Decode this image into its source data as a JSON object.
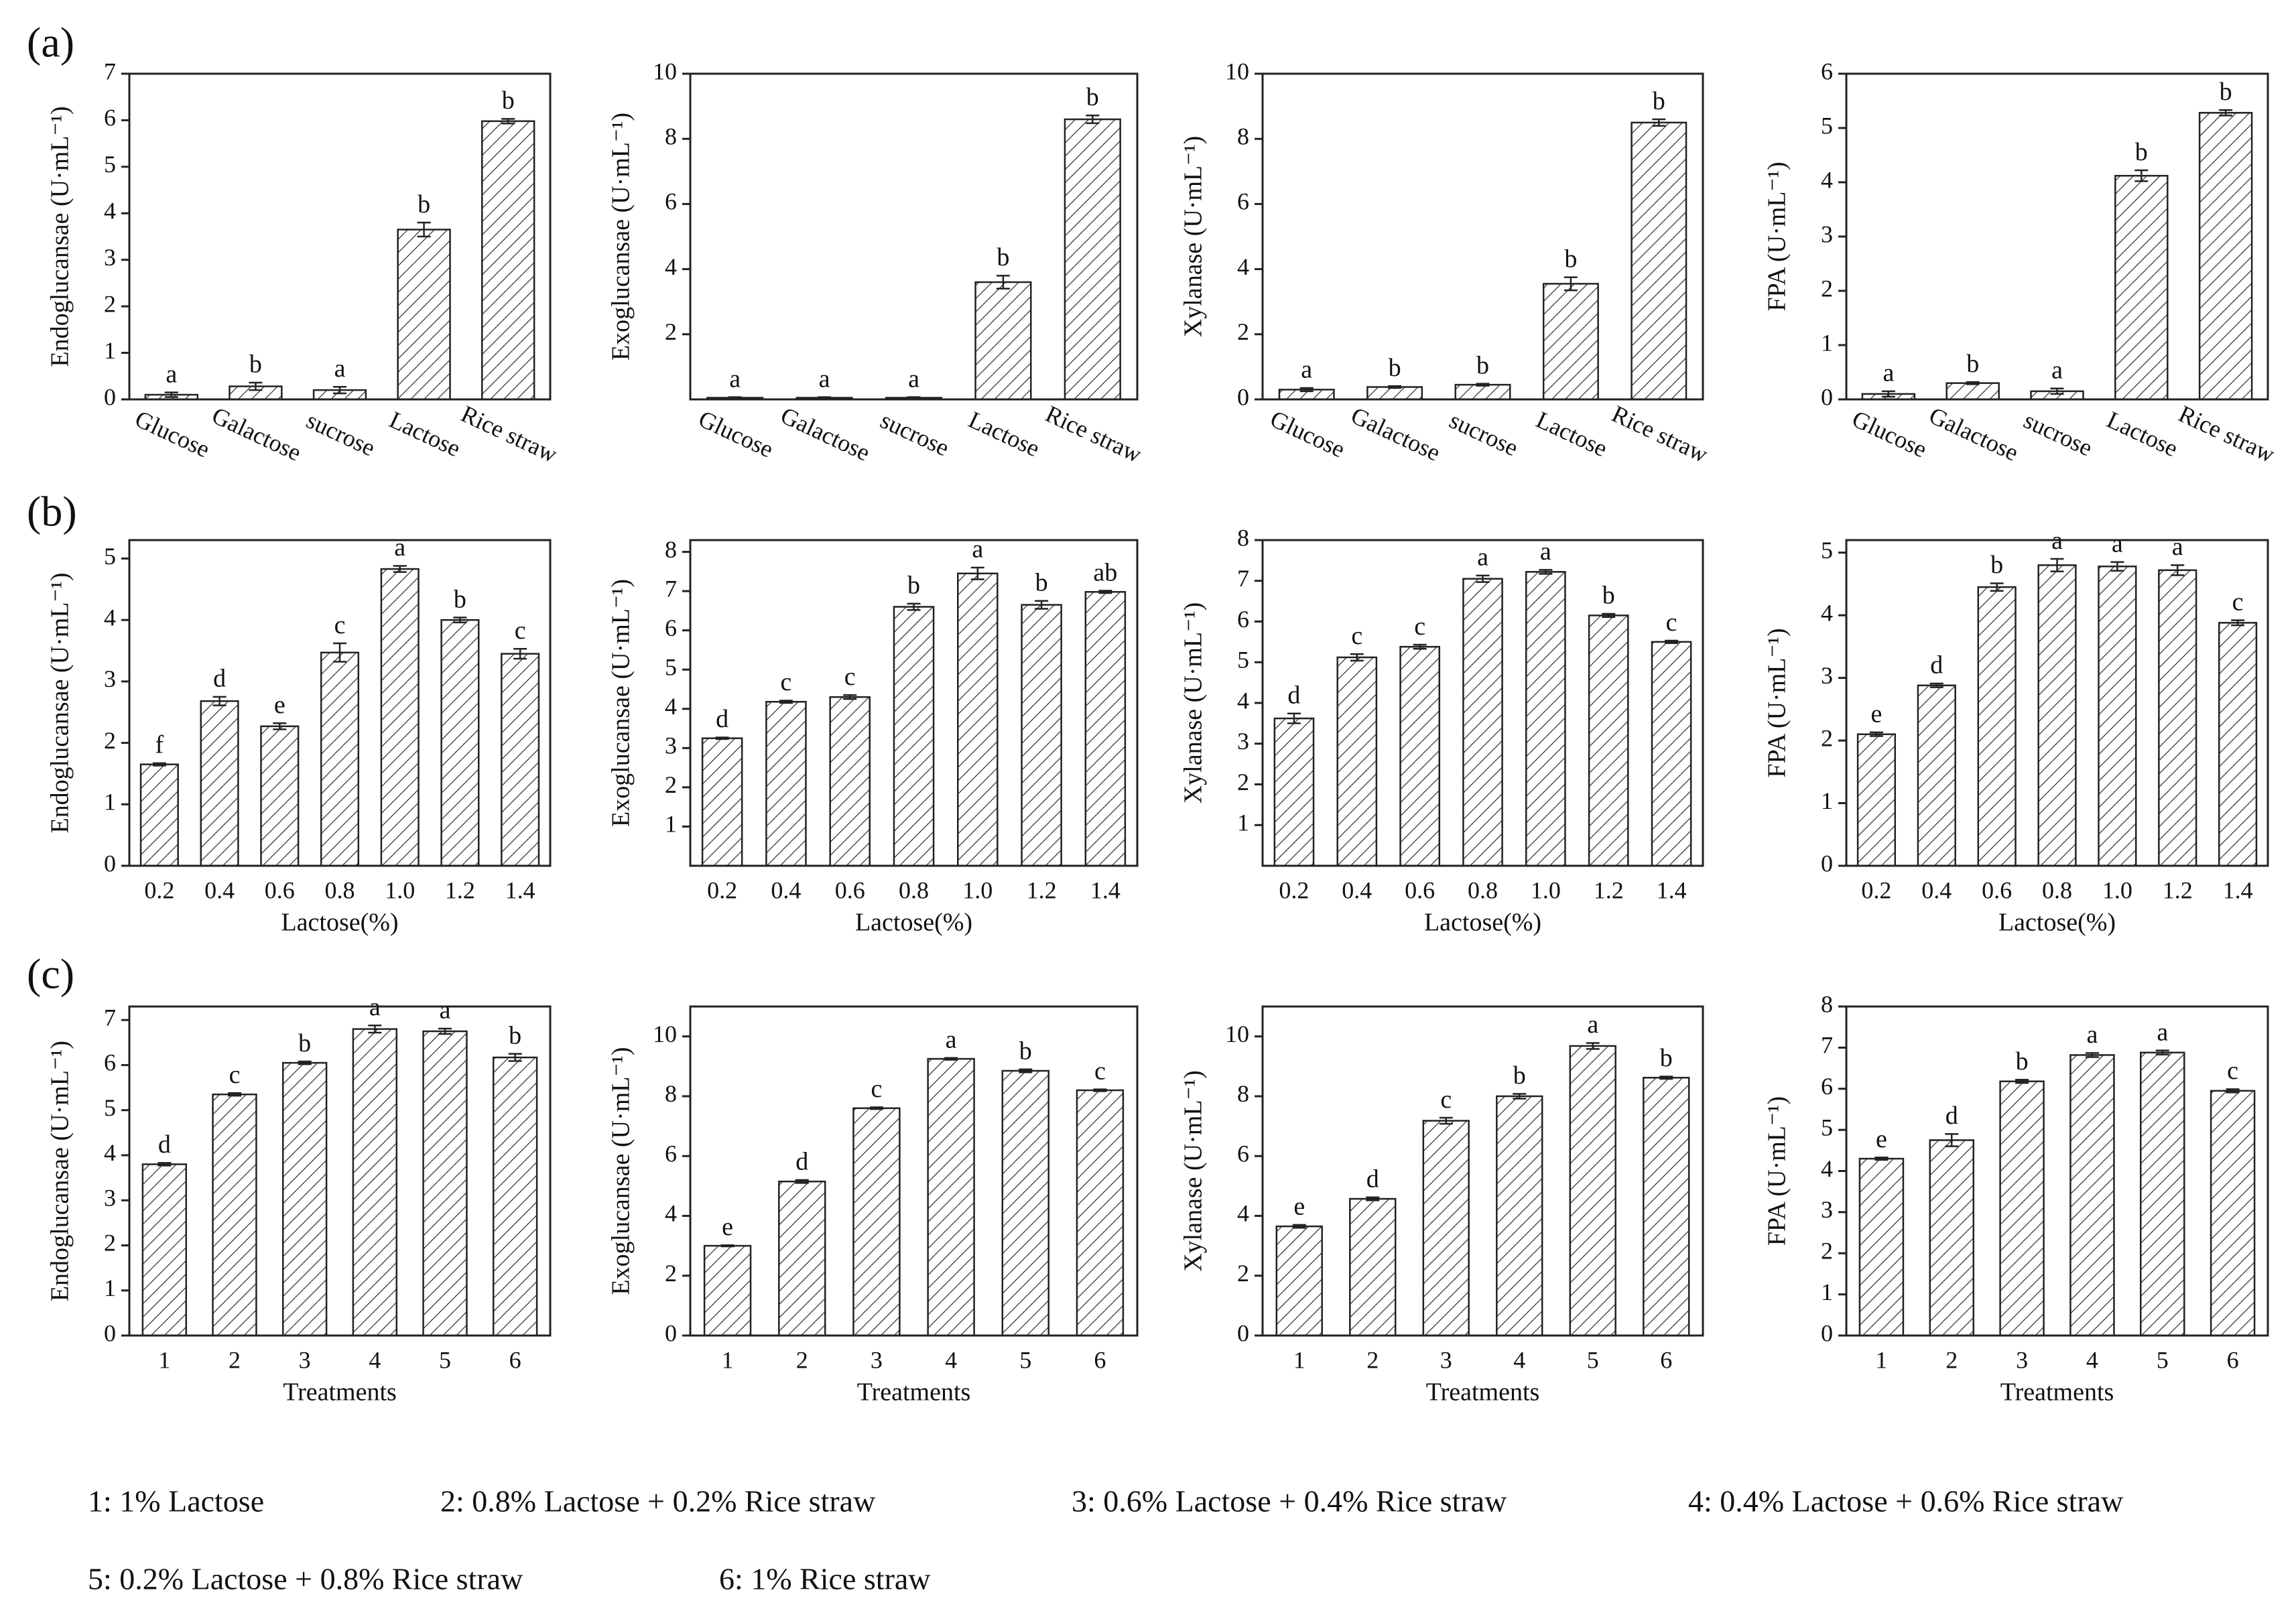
{
  "panels": [
    "(a)",
    "(b)",
    "(c)"
  ],
  "notes": [
    "1: 1% Lactose",
    "2: 0.8% Lactose + 0.2% Rice straw",
    "3: 0.6% Lactose + 0.4% Rice straw",
    "4: 0.4% Lactose + 0.6% Rice straw",
    "5: 0.2% Lactose + 0.8% Rice straw",
    "6: 1% Rice straw"
  ],
  "chart_data": [
    {
      "type": "bar",
      "ylabel": "Endoglucansae (U·mL⁻¹)",
      "categories": [
        "Glucose",
        "Galactose",
        "sucrose",
        "Lactose",
        "Rice straw"
      ],
      "values": [
        0.1,
        0.28,
        0.2,
        3.65,
        5.98
      ],
      "errors": [
        0.05,
        0.08,
        0.07,
        0.15,
        0.05
      ],
      "letters": [
        "a",
        "b",
        "a",
        "b",
        "b"
      ],
      "ylim": [
        0,
        7
      ],
      "yticks": [
        0,
        1,
        2,
        3,
        4,
        5,
        6,
        7
      ]
    },
    {
      "type": "bar",
      "ylabel": "Exoglucansae (U·mL⁻¹)",
      "categories": [
        "Glucose",
        "Galactose",
        "sucrose",
        "Lactose",
        "Rice straw"
      ],
      "values": [
        0.05,
        0.05,
        0.05,
        3.6,
        8.6
      ],
      "errors": [
        0.02,
        0.02,
        0.02,
        0.2,
        0.12
      ],
      "letters": [
        "a",
        "a",
        "a",
        "b",
        "b"
      ],
      "ylim": [
        0,
        10
      ],
      "yticks": [
        2,
        4,
        6,
        8,
        10
      ]
    },
    {
      "type": "bar",
      "ylabel": "Xylanase (U·mL⁻¹)",
      "categories": [
        "Glucose",
        "Galactose",
        "sucrose",
        "Lactose",
        "Rice straw"
      ],
      "values": [
        0.3,
        0.38,
        0.45,
        3.55,
        8.5
      ],
      "errors": [
        0.05,
        0.03,
        0.03,
        0.2,
        0.1
      ],
      "letters": [
        "a",
        "b",
        "b",
        "b",
        "b"
      ],
      "ylim": [
        0,
        10
      ],
      "yticks": [
        0,
        2,
        4,
        6,
        8,
        10
      ]
    },
    {
      "type": "bar",
      "ylabel": "FPA (U·mL⁻¹)",
      "categories": [
        "Glucose",
        "Galactose",
        "sucrose",
        "Lactose",
        "Rice straw"
      ],
      "values": [
        0.1,
        0.3,
        0.15,
        4.12,
        5.28
      ],
      "errors": [
        0.05,
        0.02,
        0.05,
        0.1,
        0.05
      ],
      "letters": [
        "a",
        "b",
        "a",
        "b",
        "b"
      ],
      "ylim": [
        0,
        6
      ],
      "yticks": [
        0,
        1,
        2,
        3,
        4,
        5,
        6
      ]
    },
    {
      "type": "bar",
      "ylabel": "Endoglucansae (U·mL⁻¹)",
      "xlabel": "Lactose(%)",
      "categories": [
        "0.2",
        "0.4",
        "0.6",
        "0.8",
        "1.0",
        "1.2",
        "1.4"
      ],
      "values": [
        1.65,
        2.68,
        2.27,
        3.47,
        4.83,
        4.0,
        3.45
      ],
      "errors": [
        0.02,
        0.07,
        0.05,
        0.15,
        0.05,
        0.04,
        0.08
      ],
      "letters": [
        "f",
        "d",
        "e",
        "c",
        "a",
        "b",
        "c"
      ],
      "ylim": [
        0,
        5.3
      ],
      "yticks": [
        0,
        1,
        2,
        3,
        4,
        5
      ]
    },
    {
      "type": "bar",
      "ylabel": "Exoglucansae (U·mL⁻¹)",
      "xlabel": "Lactose(%)",
      "categories": [
        "0.2",
        "0.4",
        "0.6",
        "0.8",
        "1.0",
        "1.2",
        "1.4"
      ],
      "values": [
        3.25,
        4.18,
        4.3,
        6.6,
        7.45,
        6.65,
        6.98
      ],
      "errors": [
        0.02,
        0.03,
        0.05,
        0.08,
        0.15,
        0.1,
        0.03
      ],
      "letters": [
        "d",
        "c",
        "c",
        "b",
        "a",
        "b",
        "ab"
      ],
      "ylim": [
        0,
        8.3
      ],
      "yticks": [
        1,
        2,
        3,
        4,
        5,
        6,
        7,
        8
      ]
    },
    {
      "type": "bar",
      "ylabel": "Xylanase (U·mL⁻¹)",
      "xlabel": "Lactose(%)",
      "categories": [
        "0.2",
        "0.4",
        "0.6",
        "0.8",
        "1.0",
        "1.2",
        "1.4"
      ],
      "values": [
        3.62,
        5.12,
        5.38,
        7.05,
        7.22,
        6.15,
        5.5
      ],
      "errors": [
        0.12,
        0.08,
        0.05,
        0.08,
        0.05,
        0.04,
        0.03
      ],
      "letters": [
        "d",
        "c",
        "c",
        "a",
        "a",
        "b",
        "c"
      ],
      "ylim": [
        0,
        8
      ],
      "yticks": [
        1,
        2,
        3,
        4,
        5,
        6,
        7,
        8
      ]
    },
    {
      "type": "bar",
      "ylabel": "FPA (U·mL⁻¹)",
      "xlabel": "Lactose(%)",
      "categories": [
        "0.2",
        "0.4",
        "0.6",
        "0.8",
        "1.0",
        "1.2",
        "1.4"
      ],
      "values": [
        2.1,
        2.88,
        4.45,
        4.8,
        4.78,
        4.72,
        3.88
      ],
      "errors": [
        0.03,
        0.03,
        0.06,
        0.1,
        0.07,
        0.08,
        0.04
      ],
      "letters": [
        "e",
        "d",
        "b",
        "a",
        "a",
        "a",
        "c"
      ],
      "ylim": [
        0,
        5.2
      ],
      "yticks": [
        0,
        1,
        2,
        3,
        4,
        5
      ]
    },
    {
      "type": "bar",
      "ylabel": "Endoglucansae (U·mL⁻¹)",
      "xlabel": "Treatments",
      "categories": [
        "1",
        "2",
        "3",
        "4",
        "5",
        "6"
      ],
      "values": [
        3.8,
        5.35,
        6.05,
        6.8,
        6.75,
        6.17
      ],
      "errors": [
        0.03,
        0.03,
        0.03,
        0.08,
        0.06,
        0.08
      ],
      "letters": [
        "d",
        "c",
        "b",
        "a",
        "a",
        "b"
      ],
      "ylim": [
        0,
        7.3
      ],
      "yticks": [
        0,
        1,
        2,
        3,
        4,
        5,
        6,
        7
      ]
    },
    {
      "type": "bar",
      "ylabel": "Exoglucansae (U·mL⁻¹)",
      "xlabel": "Treatments",
      "categories": [
        "1",
        "2",
        "3",
        "4",
        "5",
        "6"
      ],
      "values": [
        3.0,
        5.15,
        7.6,
        9.25,
        8.85,
        8.2
      ],
      "errors": [
        0.02,
        0.05,
        0.03,
        0.03,
        0.05,
        0.03
      ],
      "letters": [
        "e",
        "d",
        "c",
        "a",
        "b",
        "c"
      ],
      "ylim": [
        0,
        11
      ],
      "yticks": [
        0,
        2,
        4,
        6,
        8,
        10
      ]
    },
    {
      "type": "bar",
      "ylabel": "Xylanase (U·mL⁻¹)",
      "xlabel": "Treatments",
      "categories": [
        "1",
        "2",
        "3",
        "4",
        "5",
        "6"
      ],
      "values": [
        3.65,
        4.57,
        7.18,
        8.0,
        9.68,
        8.62
      ],
      "errors": [
        0.05,
        0.05,
        0.1,
        0.08,
        0.1,
        0.04
      ],
      "letters": [
        "e",
        "d",
        "c",
        "b",
        "a",
        "b"
      ],
      "ylim": [
        0,
        11
      ],
      "yticks": [
        0,
        2,
        4,
        6,
        8,
        10
      ]
    },
    {
      "type": "bar",
      "ylabel": "FPA (U·mL⁻¹)",
      "xlabel": "Treatments",
      "categories": [
        "1",
        "2",
        "3",
        "4",
        "5",
        "6"
      ],
      "values": [
        4.3,
        4.75,
        6.18,
        6.82,
        6.88,
        5.95
      ],
      "errors": [
        0.03,
        0.15,
        0.04,
        0.05,
        0.05,
        0.04
      ],
      "letters": [
        "e",
        "d",
        "b",
        "a",
        "a",
        "c"
      ],
      "ylim": [
        0,
        8
      ],
      "yticks": [
        0,
        1,
        2,
        3,
        4,
        5,
        6,
        7,
        8
      ]
    }
  ]
}
